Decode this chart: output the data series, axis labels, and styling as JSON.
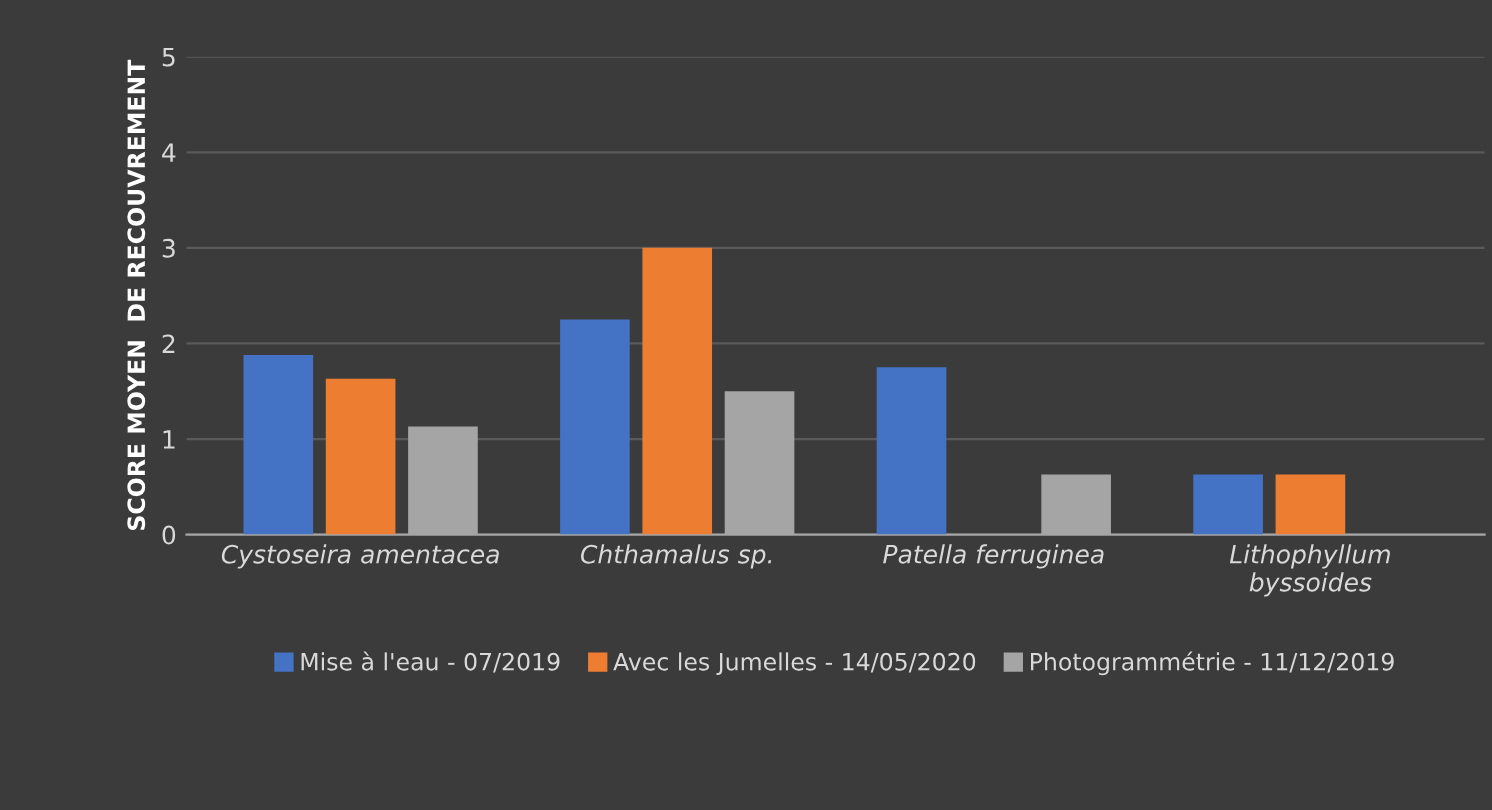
{
  "chart_data": {
    "type": "bar",
    "ylabel": "SCORE MOYEN  DE RECOUVREMENT",
    "categories": [
      "Cystoseira amentacea",
      "Chthamalus sp.",
      "Patella ferruginea",
      "Lithophyllum\nbyssoides"
    ],
    "series": [
      {
        "name": "Mise à l'eau - 07/2019",
        "color": "#4472c4",
        "values": [
          1.88,
          2.25,
          1.75,
          0.63
        ]
      },
      {
        "name": "Avec les Jumelles - 14/05/2020",
        "color": "#ed7d31",
        "values": [
          1.63,
          3.0,
          null,
          0.63
        ]
      },
      {
        "name": "Photogrammétrie - 11/12/2019",
        "color": "#a5a5a5",
        "values": [
          1.13,
          1.5,
          0.63,
          null
        ]
      }
    ],
    "ylim": [
      0,
      5
    ],
    "yticks": [
      0,
      1,
      2,
      3,
      4,
      5
    ],
    "grid": "y",
    "legend": "bottom"
  }
}
